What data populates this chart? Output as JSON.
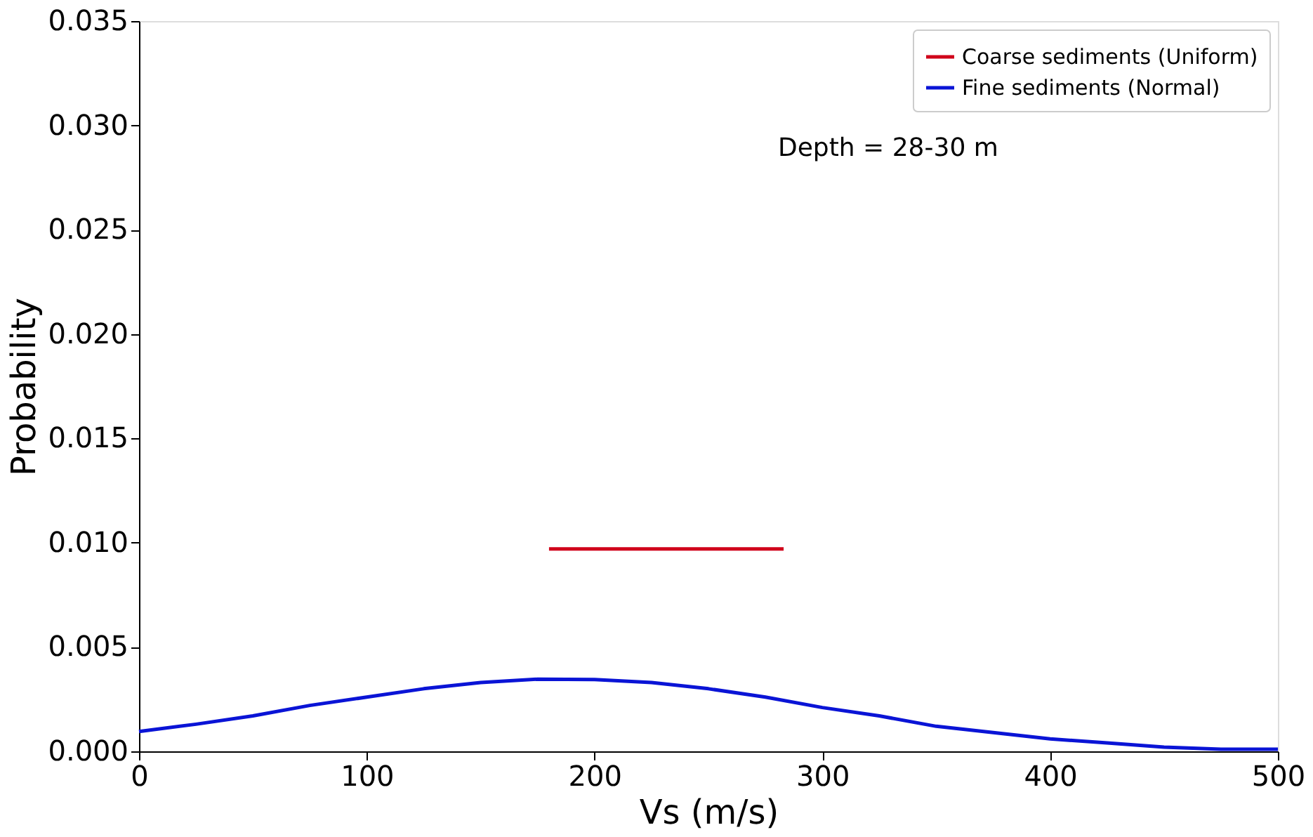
{
  "chart_data": {
    "type": "line",
    "xlabel": "Vs (m/s)",
    "ylabel": "Probability",
    "xlim": [
      0,
      500
    ],
    "xticks": [
      0,
      100,
      200,
      300,
      400,
      500
    ],
    "ylim": [
      0,
      0.035
    ],
    "yticks": [
      {
        "value": 0,
        "label": "0.000"
      },
      {
        "value": 0.005,
        "label": "0.005"
      },
      {
        "value": 0.01,
        "label": "0.010"
      },
      {
        "value": 0.015,
        "label": "0.015"
      },
      {
        "value": 0.02,
        "label": "0.020"
      },
      {
        "value": 0.025,
        "label": "0.025"
      },
      {
        "value": 0.03,
        "label": "0.030"
      },
      {
        "value": 0.035,
        "label": "0.035"
      }
    ],
    "grid": false,
    "legend": "top right",
    "line_style": "solid",
    "marker": "none",
    "annotations": [
      "Depth = 28-30 m"
    ],
    "series": [
      {
        "name": "Coarse sediments (Uniform)",
        "color": "#d0021b",
        "x": [
          180,
          283
        ],
        "values": [
          0.0097,
          0.0097
        ]
      },
      {
        "name": "Fine sediments (Normal)",
        "color": "#0a14d6",
        "x": [
          0,
          25,
          50,
          75,
          100,
          125,
          150,
          175,
          200,
          225,
          250,
          275,
          300,
          325,
          350,
          375,
          400,
          425,
          450,
          475,
          500
        ],
        "values": [
          0.00095,
          0.0013,
          0.0017,
          0.0022,
          0.0026,
          0.003,
          0.0033,
          0.00346,
          0.00344,
          0.0033,
          0.003,
          0.0026,
          0.0021,
          0.0017,
          0.0012,
          0.0009,
          0.0006,
          0.0004,
          0.0002,
          0.0001,
          0.0001
        ]
      }
    ]
  }
}
